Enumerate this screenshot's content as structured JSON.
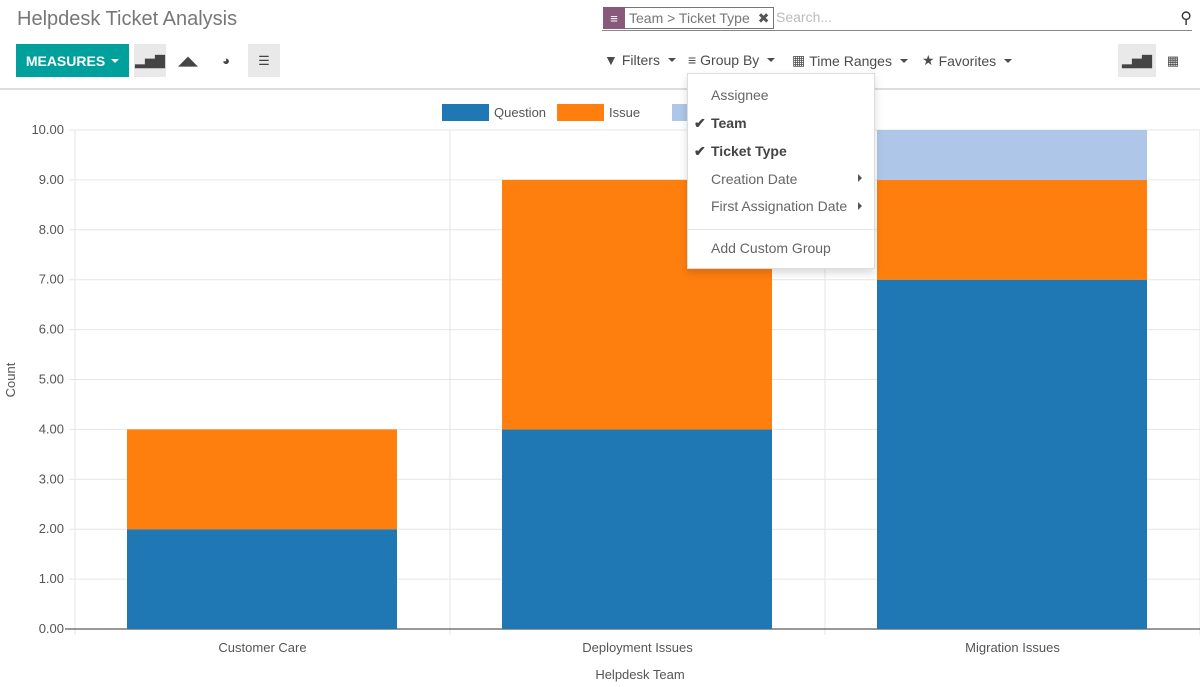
{
  "header": {
    "title": "Helpdesk Ticket Analysis"
  },
  "toolbar": {
    "measures": "MEASURES",
    "views": [
      "bar-chart-icon",
      "area-chart-icon",
      "pie-chart-icon",
      "stacked-icon"
    ]
  },
  "search": {
    "facet": "Team > Ticket Type",
    "placeholder": "Search..."
  },
  "filters": {
    "filters": "Filters",
    "group_by": "Group By",
    "time_ranges": "Time Ranges",
    "favorites": "Favorites"
  },
  "group_by_menu": {
    "items": [
      {
        "label": "Assignee",
        "checked": false
      },
      {
        "label": "Team",
        "checked": true
      },
      {
        "label": "Ticket Type",
        "checked": true
      },
      {
        "label": "Creation Date",
        "submenu": true
      },
      {
        "label": "First Assignation Date",
        "submenu": true
      }
    ],
    "custom": "Add Custom Group"
  },
  "chart_data": {
    "type": "bar",
    "stacked": true,
    "categories": [
      "Customer Care",
      "Deployment Issues",
      "Migration Issues"
    ],
    "series": [
      {
        "name": "Question",
        "color": "#1f77b4",
        "values": [
          2,
          4,
          7
        ]
      },
      {
        "name": "Issue",
        "color": "#ff7f0e",
        "values": [
          2,
          5,
          2
        ]
      },
      {
        "name": "",
        "color": "#aec7e8",
        "values": [
          0,
          0,
          1
        ]
      }
    ],
    "xlabel": "Helpdesk Team",
    "ylabel": "Count",
    "ylim": [
      0,
      10
    ],
    "yticks": [
      "0.00",
      "1.00",
      "2.00",
      "3.00",
      "4.00",
      "5.00",
      "6.00",
      "7.00",
      "8.00",
      "9.00",
      "10.00"
    ],
    "grid": true,
    "legend": "top"
  }
}
